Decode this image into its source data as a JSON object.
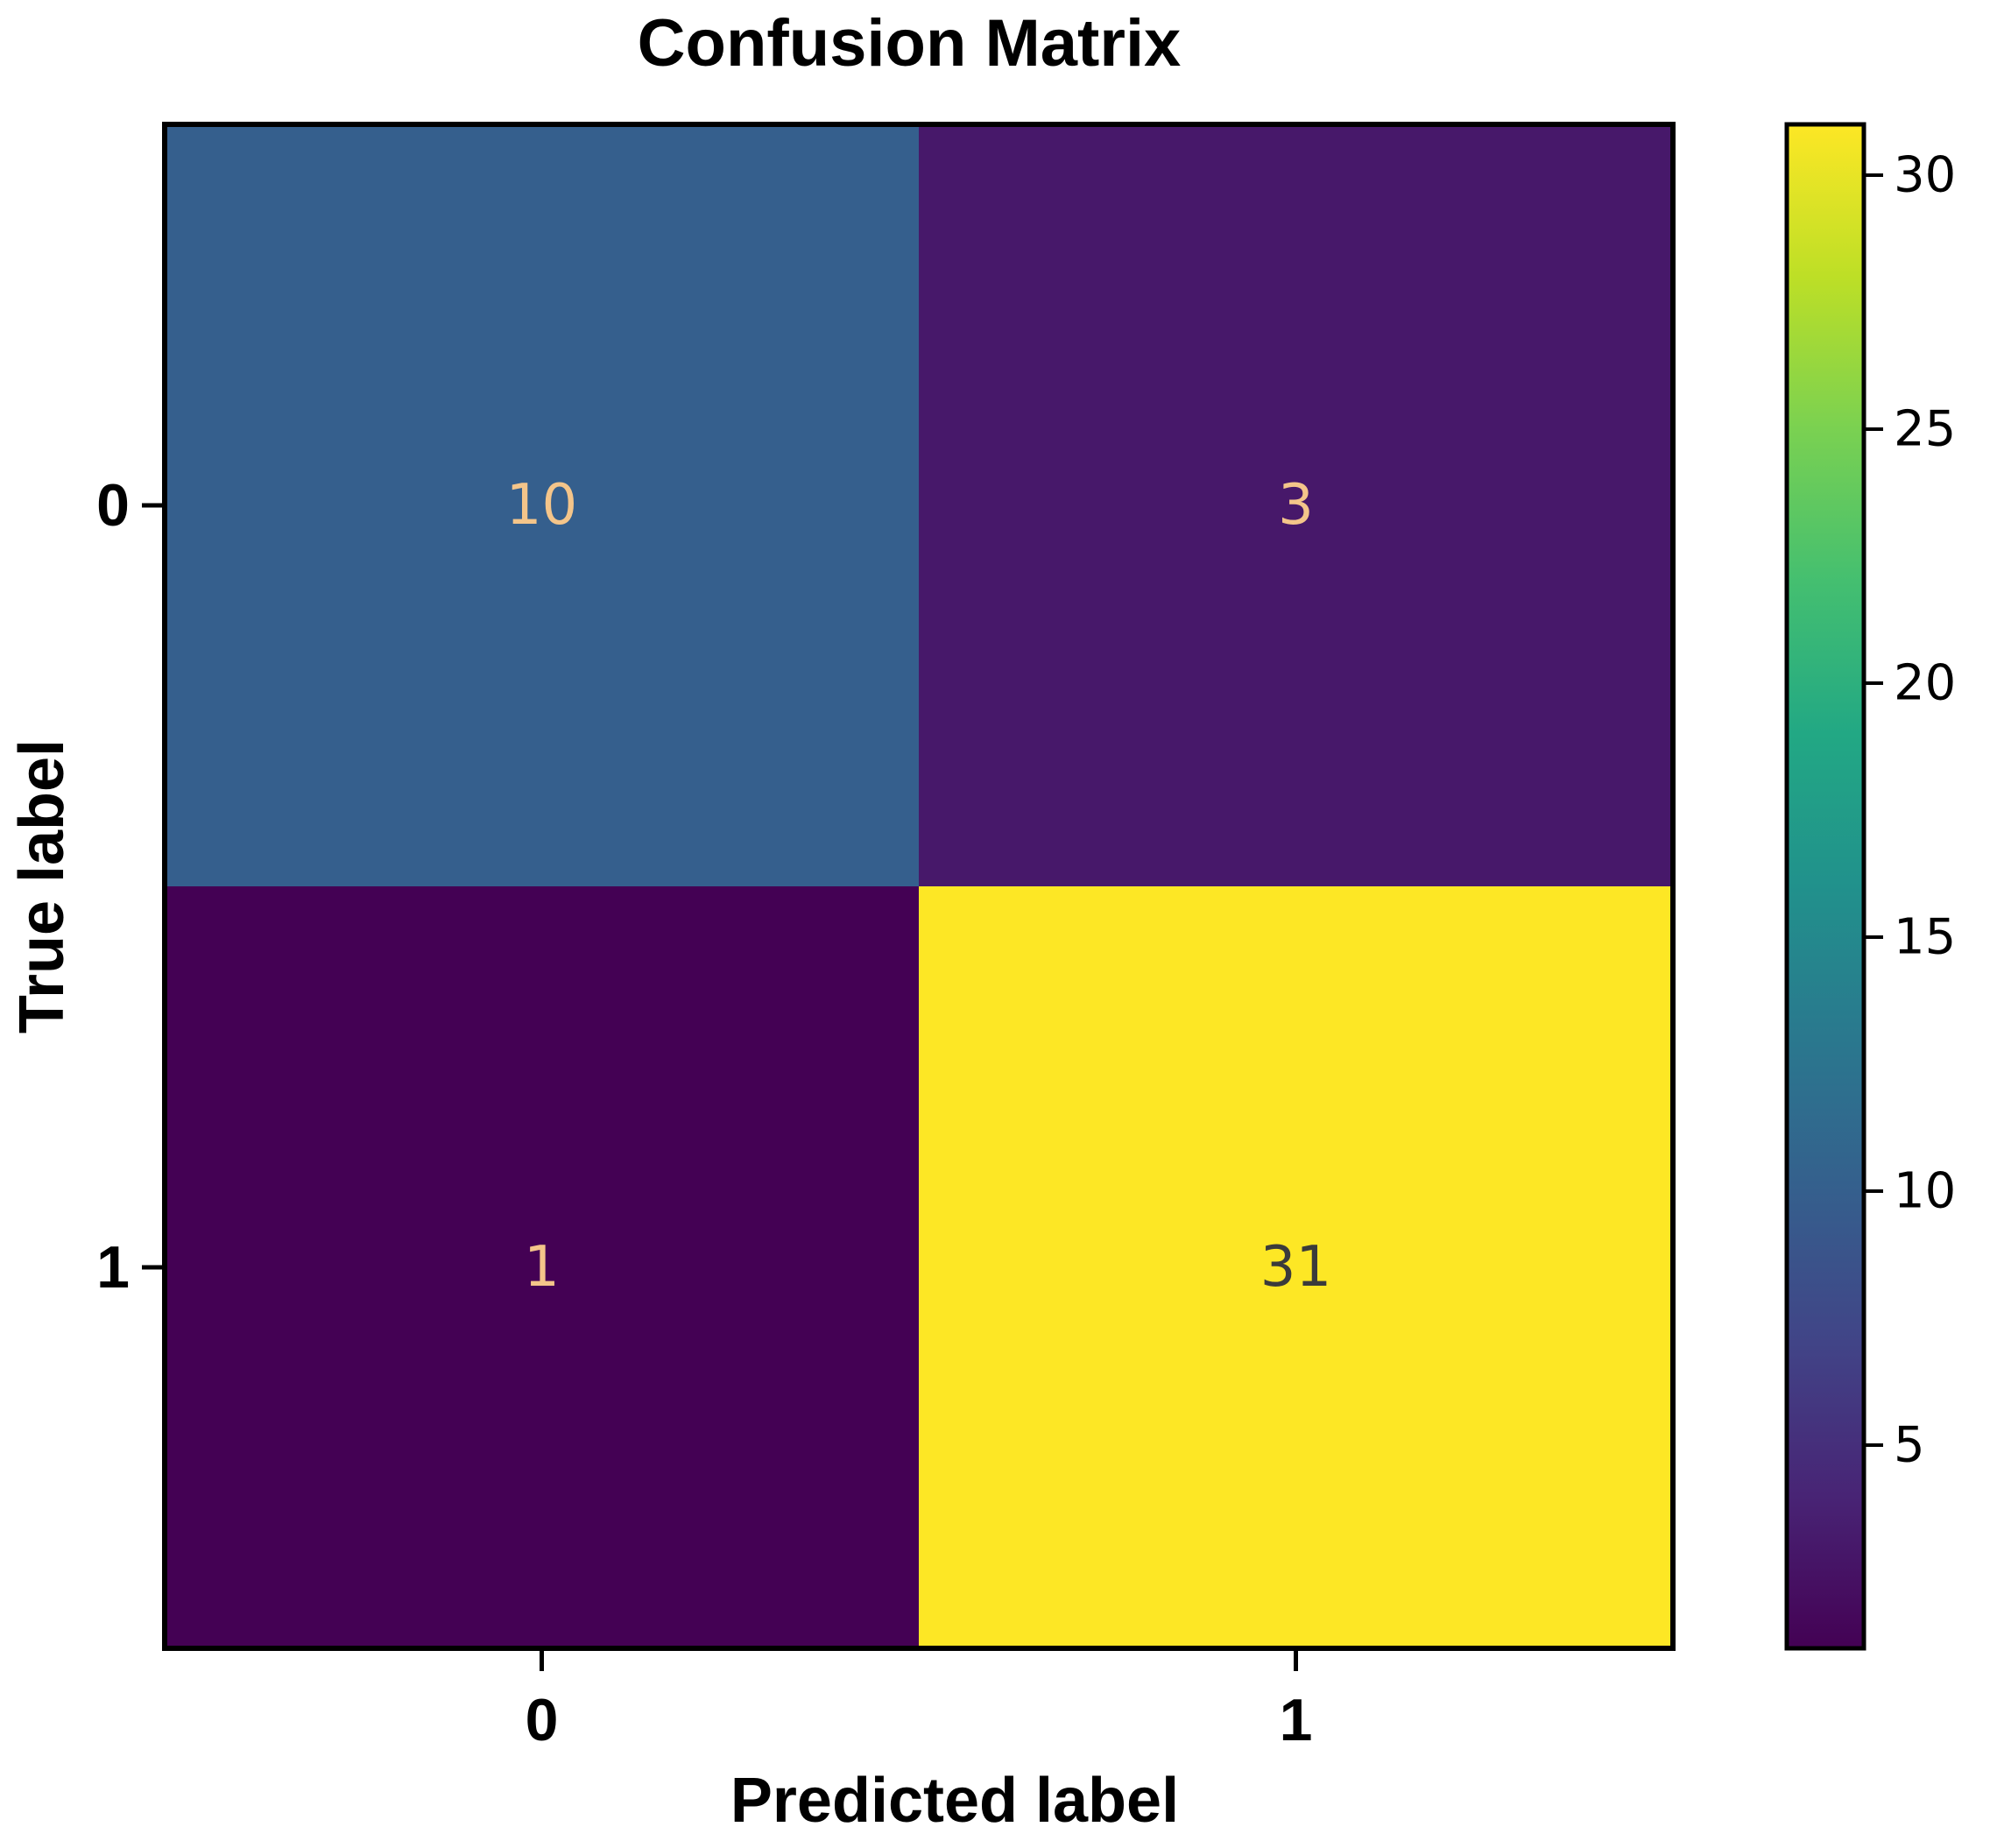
{
  "chart_data": {
    "type": "heatmap",
    "title": "Confusion Matrix",
    "xlabel": "Predicted label",
    "ylabel": "True label",
    "x_categories": [
      "0",
      "1"
    ],
    "y_categories": [
      "0",
      "1"
    ],
    "matrix": [
      [
        10,
        3
      ],
      [
        1,
        31
      ]
    ],
    "colormap": "viridis",
    "colorbar": {
      "range": [
        1,
        31
      ],
      "ticks": [
        5,
        10,
        15,
        20,
        25,
        30
      ]
    },
    "grid": false
  }
}
